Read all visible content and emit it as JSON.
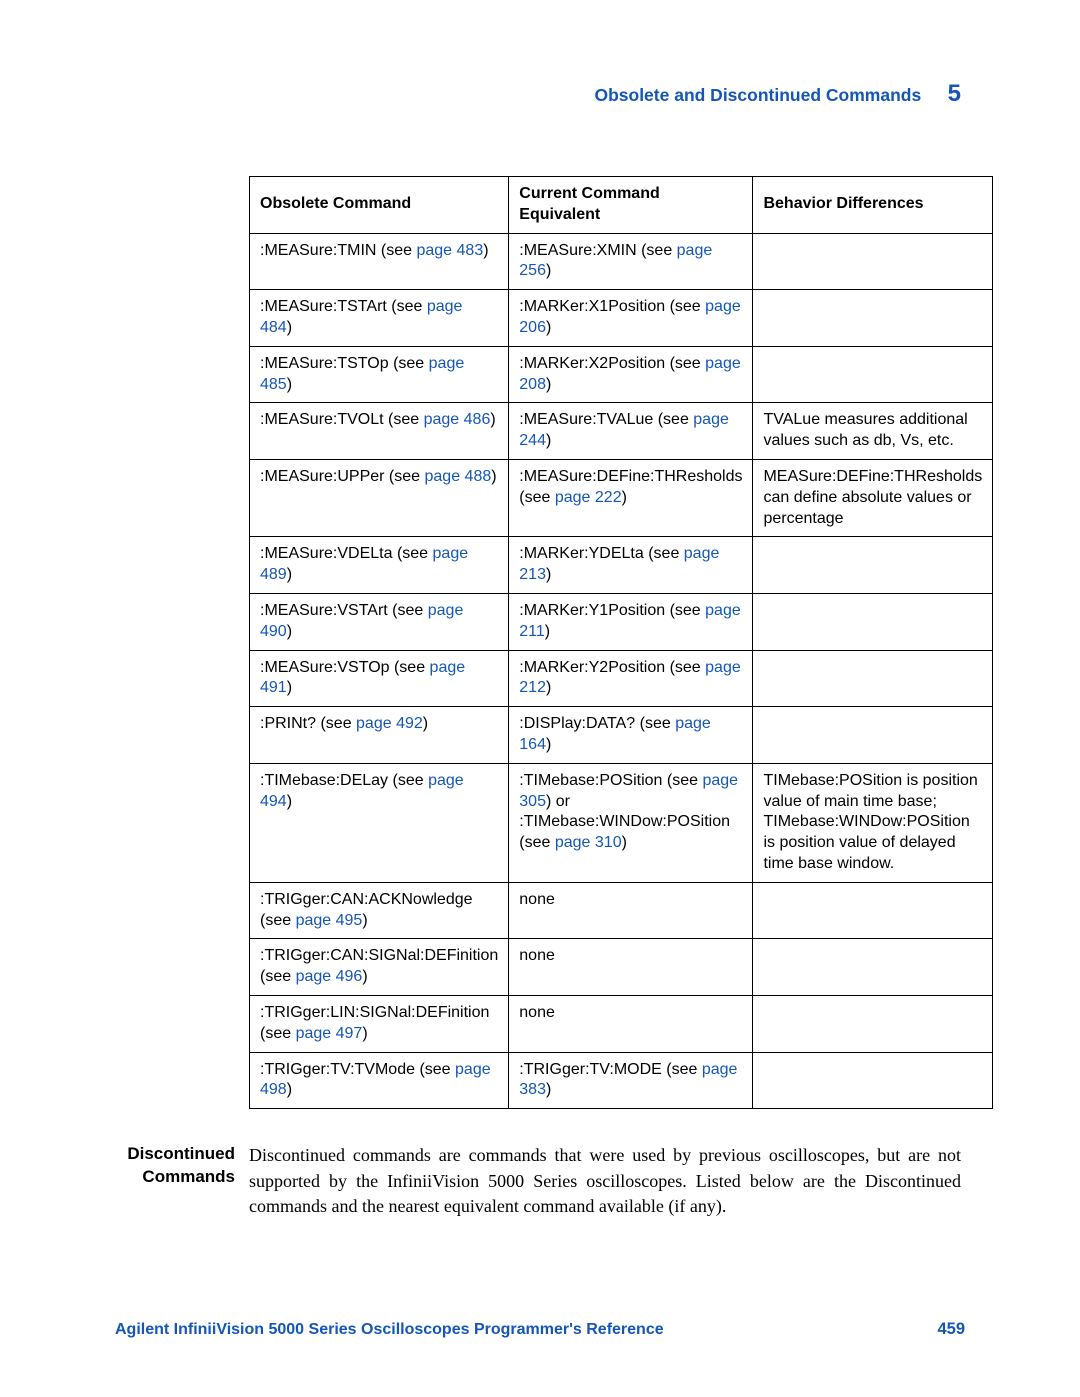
{
  "header": {
    "title": "Obsolete and Discontinued Commands",
    "chapter": "5"
  },
  "table": {
    "columns": [
      "Obsolete Command",
      "Current Command Equivalent",
      "Behavior Differences"
    ],
    "rows": [
      {
        "obs_pre": ":MEASure:TMIN (see ",
        "obs_link": "page 483",
        "obs_post": ")",
        "cur_pre": ":MEASure:XMIN (see ",
        "cur_link": "page 256",
        "cur_post": ")",
        "beh": ""
      },
      {
        "obs_pre": ":MEASure:TSTArt (see ",
        "obs_link": "page 484",
        "obs_post": ")",
        "cur_pre": ":MARKer:X1Position (see ",
        "cur_link": "page 206",
        "cur_post": ")",
        "beh": ""
      },
      {
        "obs_pre": ":MEASure:TSTOp (see ",
        "obs_link": "page 485",
        "obs_post": ")",
        "cur_pre": ":MARKer:X2Position (see ",
        "cur_link": "page 208",
        "cur_post": ")",
        "beh": ""
      },
      {
        "obs_pre": ":MEASure:TVOLt (see ",
        "obs_link": "page 486",
        "obs_post": ")",
        "cur_pre": ":MEASure:TVALue (see ",
        "cur_link": "page 244",
        "cur_post": ")",
        "beh": "TVALue measures additional values such as db, Vs, etc."
      },
      {
        "obs_pre": ":MEASure:UPPer (see ",
        "obs_link": "page 488",
        "obs_post": ")",
        "cur_pre": ":MEASure:DEFine:THResholds (see ",
        "cur_link": "page 222",
        "cur_post": ")",
        "beh": "MEASure:DEFine:THResholds can define absolute values or percentage"
      },
      {
        "obs_pre": ":MEASure:VDELta (see ",
        "obs_link": "page 489",
        "obs_post": ")",
        "cur_pre": ":MARKer:YDELta (see ",
        "cur_link": "page 213",
        "cur_post": ")",
        "beh": ""
      },
      {
        "obs_pre": ":MEASure:VSTArt (see ",
        "obs_link": "page 490",
        "obs_post": ")",
        "cur_pre": ":MARKer:Y1Position (see ",
        "cur_link": "page 211",
        "cur_post": ")",
        "beh": ""
      },
      {
        "obs_pre": ":MEASure:VSTOp (see ",
        "obs_link": "page 491",
        "obs_post": ")",
        "cur_pre": ":MARKer:Y2Position (see ",
        "cur_link": "page 212",
        "cur_post": ")",
        "beh": ""
      },
      {
        "obs_pre": ":PRINt? (see ",
        "obs_link": "page 492",
        "obs_post": ")",
        "cur_pre": ":DISPlay:DATA? (see ",
        "cur_link": "page 164",
        "cur_post": ")",
        "beh": ""
      },
      {
        "obs_pre": ":TIMebase:DELay (see ",
        "obs_link": "page 494",
        "obs_post": ")",
        "cur_pre": ":TIMebase:POSition (see ",
        "cur_link": "page 305",
        "cur_mid": ") or :TIMebase:WINDow:POSition (see ",
        "cur_link2": "page 310",
        "cur_post": ")",
        "beh": "TIMebase:POSition is position value of main time base; TIMebase:WINDow:POSition is position value of delayed time base window."
      },
      {
        "obs_pre": ":TRIGger:CAN:ACKNowledge (see ",
        "obs_link": "page 495",
        "obs_post": ")",
        "cur_pre": "none",
        "cur_link": "",
        "cur_post": "",
        "beh": ""
      },
      {
        "obs_pre": ":TRIGger:CAN:SIGNal:DEFinition (see ",
        "obs_link": "page 496",
        "obs_post": ")",
        "cur_pre": "none",
        "cur_link": "",
        "cur_post": "",
        "beh": ""
      },
      {
        "obs_pre": ":TRIGger:LIN:SIGNal:DEFinition (see ",
        "obs_link": "page 497",
        "obs_post": ")",
        "cur_pre": "none",
        "cur_link": "",
        "cur_post": "",
        "beh": ""
      },
      {
        "obs_pre": ":TRIGger:TV:TVMode (see ",
        "obs_link": "page 498",
        "obs_post": ")",
        "cur_pre": ":TRIGger:TV:MODE (see ",
        "cur_link": "page 383",
        "cur_post": ")",
        "beh": ""
      }
    ]
  },
  "section": {
    "label_line1": "Discontinued",
    "label_line2": "Commands",
    "body": "Discontinued commands are commands that were used by previous oscilloscopes, but are not supported by the InfiniiVision 5000 Series oscilloscopes. Listed below are the Discontinued commands and the nearest equivalent command available (if any)."
  },
  "footer": {
    "title": "Agilent InfiniiVision 5000 Series Oscilloscopes Programmer's Reference",
    "page": "459"
  },
  "colors": {
    "link": "#1456b8",
    "text": "#000000",
    "border": "#000000"
  }
}
